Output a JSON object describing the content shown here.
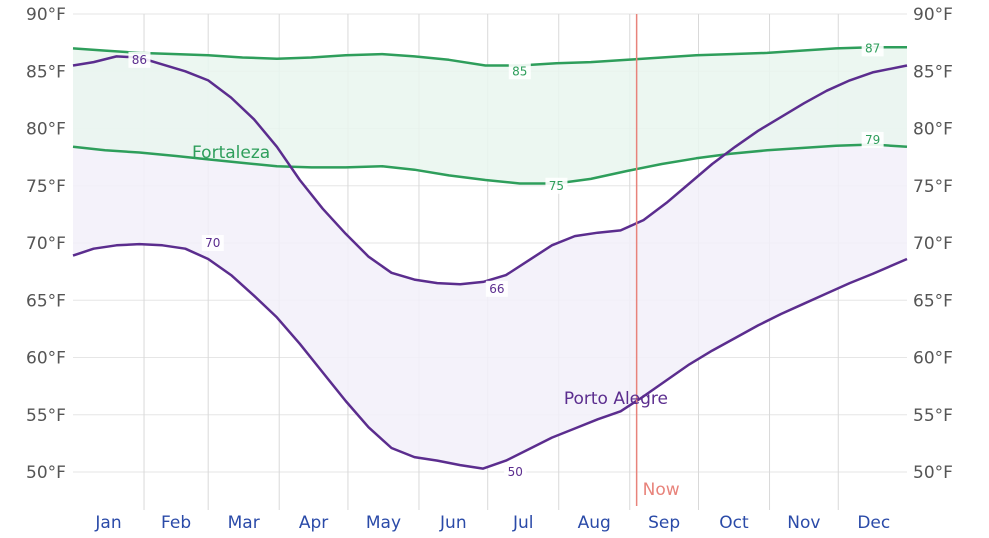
{
  "chart_data": {
    "type": "area",
    "title": "",
    "xlabel": "",
    "ylabel": "",
    "y_unit": "°F",
    "ylim": [
      47,
      90
    ],
    "y_ticks": [
      50,
      55,
      60,
      65,
      70,
      75,
      80,
      85,
      90
    ],
    "y_tick_labels": [
      "50°F",
      "55°F",
      "60°F",
      "65°F",
      "70°F",
      "75°F",
      "80°F",
      "85°F",
      "90°F"
    ],
    "x_axis": "day of year (months)",
    "xlim": [
      1,
      365
    ],
    "months": [
      "Jan",
      "Feb",
      "Mar",
      "Apr",
      "May",
      "Jun",
      "Jul",
      "Aug",
      "Sep",
      "Oct",
      "Nov",
      "Dec"
    ],
    "grid": true,
    "now_label": "Now",
    "now_day": 247,
    "series": [
      {
        "name": "Fortaleza",
        "color": "#2e9e5b",
        "band_fill": "#e9f6ee",
        "high_x": [
          1,
          15,
          30,
          46,
          60,
          75,
          90,
          105,
          120,
          136,
          150,
          165,
          181,
          196,
          212,
          227,
          243,
          258,
          273,
          288,
          304,
          319,
          334,
          350,
          365
        ],
        "high_y": [
          87.0,
          86.8,
          86.6,
          86.5,
          86.4,
          86.2,
          86.1,
          86.2,
          86.4,
          86.5,
          86.3,
          86.0,
          85.5,
          85.5,
          85.7,
          85.8,
          86.0,
          86.2,
          86.4,
          86.5,
          86.6,
          86.8,
          87.0,
          87.1,
          87.1
        ],
        "low_x": [
          1,
          15,
          30,
          46,
          60,
          75,
          90,
          105,
          120,
          136,
          150,
          165,
          181,
          196,
          212,
          227,
          243,
          258,
          273,
          288,
          304,
          319,
          334,
          350,
          365
        ],
        "low_y": [
          78.4,
          78.1,
          77.9,
          77.6,
          77.3,
          77.0,
          76.7,
          76.6,
          76.6,
          76.7,
          76.4,
          75.9,
          75.5,
          75.2,
          75.2,
          75.6,
          76.3,
          76.9,
          77.4,
          77.8,
          78.1,
          78.3,
          78.5,
          78.6,
          78.4
        ],
        "labels": [
          {
            "x": 196,
            "y": 85,
            "text": "85"
          },
          {
            "x": 350,
            "y": 87,
            "text": "87"
          },
          {
            "x": 212,
            "y": 75,
            "text": "75"
          },
          {
            "x": 350,
            "y": 79,
            "text": "79"
          }
        ]
      },
      {
        "name": "Porto Alegre",
        "color": "#5b2d8e",
        "band_fill": "#f2f0f9",
        "high_x": [
          1,
          10,
          20,
          30,
          40,
          50,
          60,
          70,
          80,
          90,
          100,
          110,
          120,
          130,
          140,
          150,
          160,
          170,
          180,
          190,
          200,
          210,
          220,
          230,
          240,
          250,
          260,
          270,
          280,
          290,
          300,
          310,
          320,
          330,
          340,
          350,
          365
        ],
        "high_y": [
          85.5,
          85.8,
          86.3,
          86.2,
          85.6,
          85.0,
          84.2,
          82.7,
          80.8,
          78.4,
          75.5,
          73.0,
          70.8,
          68.8,
          67.4,
          66.8,
          66.5,
          66.4,
          66.6,
          67.2,
          68.5,
          69.8,
          70.6,
          70.9,
          71.1,
          72.0,
          73.5,
          75.2,
          76.9,
          78.4,
          79.8,
          81.0,
          82.2,
          83.3,
          84.2,
          84.9,
          85.5
        ],
        "low_x": [
          1,
          10,
          20,
          30,
          40,
          50,
          60,
          70,
          80,
          90,
          100,
          110,
          120,
          130,
          140,
          150,
          160,
          170,
          180,
          190,
          200,
          210,
          220,
          230,
          240,
          250,
          260,
          270,
          280,
          290,
          300,
          310,
          320,
          330,
          340,
          350,
          365
        ],
        "low_y": [
          68.9,
          69.5,
          69.8,
          69.9,
          69.8,
          69.5,
          68.6,
          67.2,
          65.4,
          63.5,
          61.2,
          58.7,
          56.2,
          53.9,
          52.1,
          51.3,
          51.0,
          50.6,
          50.3,
          51.0,
          52.0,
          53.0,
          53.8,
          54.6,
          55.3,
          56.6,
          58.0,
          59.4,
          60.6,
          61.7,
          62.8,
          63.8,
          64.7,
          65.6,
          66.5,
          67.3,
          68.6
        ],
        "labels": [
          {
            "x": 30,
            "y": 86,
            "text": "86"
          },
          {
            "x": 62,
            "y": 70,
            "text": "70"
          },
          {
            "x": 186,
            "y": 66,
            "text": "66"
          },
          {
            "x": 194,
            "y": 50,
            "text": "50"
          }
        ]
      }
    ]
  }
}
